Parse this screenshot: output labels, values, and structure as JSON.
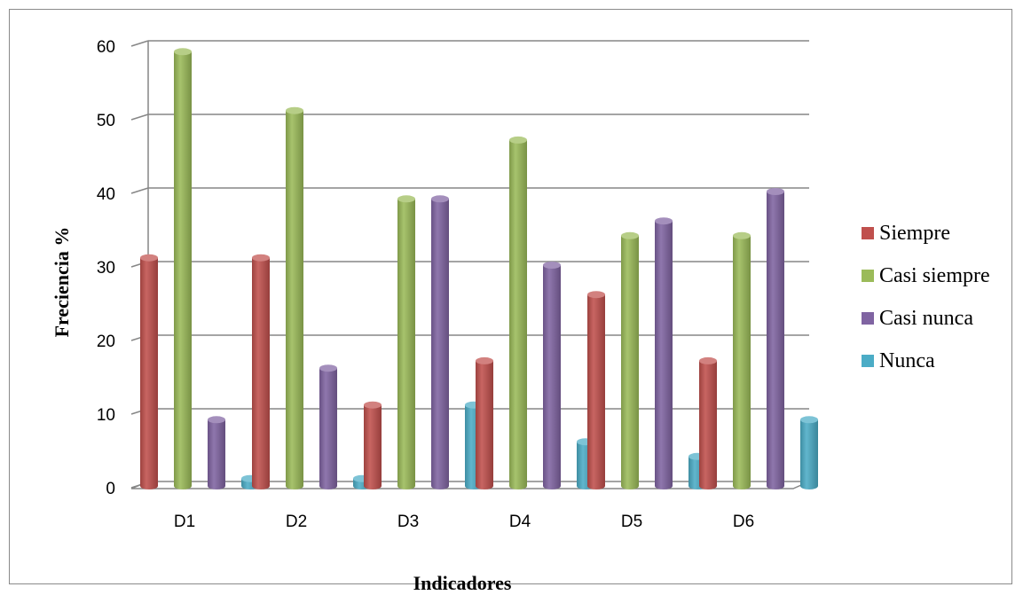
{
  "chart_data": {
    "type": "bar",
    "title": "",
    "xlabel": "Indicadores",
    "ylabel": "Freciencia %",
    "categories": [
      "D1",
      "D2",
      "D3",
      "D4",
      "D5",
      "D6"
    ],
    "ylim": [
      0,
      60
    ],
    "yticks": [
      "0",
      "10",
      "20",
      "30",
      "40",
      "50",
      "60"
    ],
    "grid": true,
    "legend_position": "right",
    "series": [
      {
        "name": "Siempre",
        "color": "#c0504d",
        "values": [
          31,
          31,
          11,
          17,
          26,
          17
        ]
      },
      {
        "name": "Casi siempre",
        "color": "#9bbb59",
        "values": [
          59,
          51,
          39,
          47,
          34,
          34
        ]
      },
      {
        "name": "Casi nunca",
        "color": "#8064a2",
        "values": [
          9,
          16,
          39,
          30,
          36,
          40
        ]
      },
      {
        "name": "Nunca",
        "color": "#4bacc6",
        "values": [
          1,
          1,
          11,
          6,
          4,
          9
        ]
      }
    ]
  }
}
